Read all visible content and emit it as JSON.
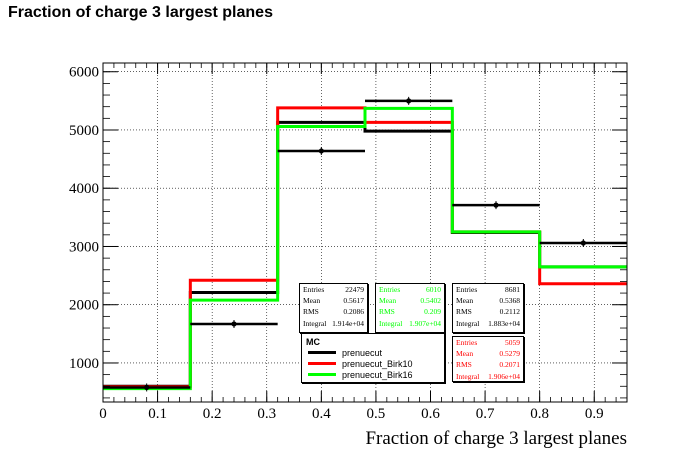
{
  "title": "Fraction of charge 3 largest planes",
  "chart_data": {
    "type": "histogram",
    "xlabel": "Fraction of charge 3 largest planes",
    "ylabel": "",
    "xlim": [
      0,
      0.96
    ],
    "ylim": [
      330,
      6150
    ],
    "grid": true,
    "x_ticks": [
      "0",
      "0.1",
      "0.2",
      "0.3",
      "0.4",
      "0.5",
      "0.6",
      "0.7",
      "0.8",
      "0.9"
    ],
    "y_ticks": [
      "1000",
      "2000",
      "3000",
      "4000",
      "5000",
      "6000"
    ],
    "bin_edges": [
      0,
      0.16,
      0.32,
      0.48,
      0.64,
      0.8,
      0.96
    ],
    "data_points": {
      "x": [
        0.08,
        0.24,
        0.4,
        0.56,
        0.72,
        0.88
      ],
      "y": [
        580,
        1670,
        4640,
        5500,
        3710,
        3060
      ],
      "color": "#000000"
    },
    "series": [
      {
        "name": "prenuecut",
        "color": "#000000",
        "values": [
          600,
          2210,
          5130,
          4980,
          3240,
          2650
        ]
      },
      {
        "name": "prenuecut_Birk10",
        "color": "#ff0000",
        "values": [
          590,
          2420,
          5380,
          5130,
          3250,
          2360
        ]
      },
      {
        "name": "prenuecut_Birk16",
        "color": "#00ff00",
        "values": [
          560,
          2080,
          5060,
          5370,
          3250,
          2650
        ]
      }
    ],
    "legend": {
      "header": "MC",
      "placement": "bottom-center"
    },
    "stats_boxes": [
      {
        "color": "#000000",
        "rows": [
          [
            "Entries",
            "22479"
          ],
          [
            "Mean",
            "0.5617"
          ],
          [
            "RMS",
            "0.2086"
          ],
          [
            "Integral",
            "1.914e+04"
          ]
        ]
      },
      {
        "color": "#00ff00",
        "rows": [
          [
            "Entries",
            "6010"
          ],
          [
            "Mean",
            "0.5402"
          ],
          [
            "RMS",
            "0.209"
          ],
          [
            "Integral",
            "1.907e+04"
          ]
        ]
      },
      {
        "color": "#000000",
        "rows": [
          [
            "Entries",
            "8681"
          ],
          [
            "Mean",
            "0.5368"
          ],
          [
            "RMS",
            "0.2112"
          ],
          [
            "Integral",
            "1.883e+04"
          ]
        ]
      },
      {
        "color": "#ff0000",
        "rows": [
          [
            "Entries",
            "5059"
          ],
          [
            "Mean",
            "0.5279"
          ],
          [
            "RMS",
            "0.2071"
          ],
          [
            "Integral",
            "1.906e+04"
          ]
        ]
      }
    ]
  }
}
